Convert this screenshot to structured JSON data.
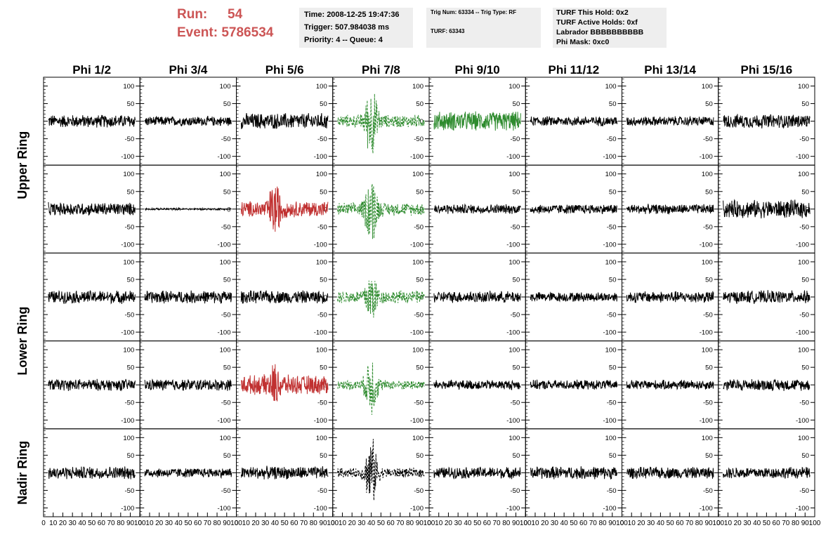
{
  "header": {
    "run_label": "Run:",
    "run_value": "54",
    "event_label": "Event:",
    "event_value": "5786534"
  },
  "info_time": {
    "time": "Time: 2008-12-25 19:47:36",
    "trigger": "Trigger: 507.984038 ms",
    "priority": "Priority: 4 -- Queue: 4"
  },
  "info_trig": {
    "trig": "Trig Num: 63334 -- Trig Type: RF",
    "turf": "TURF: 63343"
  },
  "info_turf": {
    "hold": "TURF This Hold: 0x2",
    "active": "TURF Active Holds: 0xf",
    "labrador": "Labrador BBBBBBBBBB",
    "mask": "Phi Mask: 0xc0"
  },
  "chart_data": {
    "type": "line",
    "grid": false,
    "column_titles": [
      "Phi 1/2",
      "Phi 3/4",
      "Phi 5/6",
      "Phi 7/8",
      "Phi 9/10",
      "Phi 11/12",
      "Phi 13/14",
      "Phi 15/16"
    ],
    "ring_titles": [
      "Upper Ring",
      "Lower Ring",
      "Nadir Ring"
    ],
    "ring_row_spans": [
      2,
      2,
      1
    ],
    "xlim": [
      0,
      100
    ],
    "ylim": [
      -125,
      125
    ],
    "x_tick_labels": [
      "0",
      "10",
      "20",
      "30",
      "40",
      "50",
      "60",
      "70",
      "80",
      "90",
      "100"
    ],
    "y_tick_labels": [
      "-100",
      "-50",
      "0",
      "50",
      "100"
    ],
    "colors": {
      "default": "#000000",
      "red": "#c03030",
      "green": "#2e8b2e"
    },
    "panels": [
      {
        "row": 0,
        "col": 0,
        "color": "#000000",
        "style": "solid",
        "amplitude": 20,
        "burst": 0
      },
      {
        "row": 0,
        "col": 1,
        "color": "#000000",
        "style": "solid",
        "amplitude": 15,
        "burst": 0
      },
      {
        "row": 0,
        "col": 2,
        "color": "#000000",
        "style": "solid",
        "amplitude": 25,
        "burst": 0
      },
      {
        "row": 0,
        "col": 3,
        "color": "#2e8b2e",
        "style": "dashed",
        "amplitude": 20,
        "burst": 100
      },
      {
        "row": 0,
        "col": 4,
        "color": "#2e8b2e",
        "style": "solid",
        "amplitude": 30,
        "burst": 0
      },
      {
        "row": 0,
        "col": 5,
        "color": "#000000",
        "style": "solid",
        "amplitude": 15,
        "burst": 0
      },
      {
        "row": 0,
        "col": 6,
        "color": "#000000",
        "style": "solid",
        "amplitude": 15,
        "burst": 0
      },
      {
        "row": 0,
        "col": 7,
        "color": "#000000",
        "style": "solid",
        "amplitude": 22,
        "burst": 0
      },
      {
        "row": 1,
        "col": 0,
        "color": "#000000",
        "style": "solid",
        "amplitude": 20,
        "burst": 0
      },
      {
        "row": 1,
        "col": 1,
        "color": "#000000",
        "style": "solid",
        "amplitude": 3,
        "burst": 0
      },
      {
        "row": 1,
        "col": 2,
        "color": "#c03030",
        "style": "solid",
        "amplitude": 25,
        "burst": 70
      },
      {
        "row": 1,
        "col": 3,
        "color": "#2e8b2e",
        "style": "dashed",
        "amplitude": 20,
        "burst": 100
      },
      {
        "row": 1,
        "col": 4,
        "color": "#000000",
        "style": "solid",
        "amplitude": 15,
        "burst": 0
      },
      {
        "row": 1,
        "col": 5,
        "color": "#000000",
        "style": "solid",
        "amplitude": 15,
        "burst": 0
      },
      {
        "row": 1,
        "col": 6,
        "color": "#000000",
        "style": "solid",
        "amplitude": 15,
        "burst": 0
      },
      {
        "row": 1,
        "col": 7,
        "color": "#000000",
        "style": "solid",
        "amplitude": 28,
        "burst": 0
      },
      {
        "row": 2,
        "col": 0,
        "color": "#000000",
        "style": "solid",
        "amplitude": 20,
        "burst": 0
      },
      {
        "row": 2,
        "col": 1,
        "color": "#000000",
        "style": "solid",
        "amplitude": 20,
        "burst": 0
      },
      {
        "row": 2,
        "col": 2,
        "color": "#000000",
        "style": "solid",
        "amplitude": 20,
        "burst": 0
      },
      {
        "row": 2,
        "col": 3,
        "color": "#2e8b2e",
        "style": "dashed",
        "amplitude": 20,
        "burst": 70
      },
      {
        "row": 2,
        "col": 4,
        "color": "#000000",
        "style": "solid",
        "amplitude": 18,
        "burst": 0
      },
      {
        "row": 2,
        "col": 5,
        "color": "#000000",
        "style": "solid",
        "amplitude": 15,
        "burst": 0
      },
      {
        "row": 2,
        "col": 6,
        "color": "#000000",
        "style": "solid",
        "amplitude": 18,
        "burst": 0
      },
      {
        "row": 2,
        "col": 7,
        "color": "#000000",
        "style": "solid",
        "amplitude": 20,
        "burst": 0
      },
      {
        "row": 3,
        "col": 0,
        "color": "#000000",
        "style": "solid",
        "amplitude": 18,
        "burst": 0
      },
      {
        "row": 3,
        "col": 1,
        "color": "#000000",
        "style": "solid",
        "amplitude": 18,
        "burst": 0
      },
      {
        "row": 3,
        "col": 2,
        "color": "#c03030",
        "style": "solid",
        "amplitude": 30,
        "burst": 40
      },
      {
        "row": 3,
        "col": 3,
        "color": "#2e8b2e",
        "style": "dashed",
        "amplitude": 15,
        "burst": 90
      },
      {
        "row": 3,
        "col": 4,
        "color": "#000000",
        "style": "solid",
        "amplitude": 15,
        "burst": 0
      },
      {
        "row": 3,
        "col": 5,
        "color": "#000000",
        "style": "solid",
        "amplitude": 15,
        "burst": 0
      },
      {
        "row": 3,
        "col": 6,
        "color": "#000000",
        "style": "solid",
        "amplitude": 15,
        "burst": 0
      },
      {
        "row": 3,
        "col": 7,
        "color": "#000000",
        "style": "solid",
        "amplitude": 18,
        "burst": 0
      },
      {
        "row": 4,
        "col": 0,
        "color": "#000000",
        "style": "solid",
        "amplitude": 20,
        "burst": 0
      },
      {
        "row": 4,
        "col": 1,
        "color": "#000000",
        "style": "solid",
        "amplitude": 15,
        "burst": 0
      },
      {
        "row": 4,
        "col": 2,
        "color": "#000000",
        "style": "solid",
        "amplitude": 20,
        "burst": 0
      },
      {
        "row": 4,
        "col": 3,
        "color": "#000000",
        "style": "dashed",
        "amplitude": 15,
        "burst": 100
      },
      {
        "row": 4,
        "col": 4,
        "color": "#000000",
        "style": "solid",
        "amplitude": 18,
        "burst": 0
      },
      {
        "row": 4,
        "col": 5,
        "color": "#000000",
        "style": "solid",
        "amplitude": 20,
        "burst": 0
      },
      {
        "row": 4,
        "col": 6,
        "color": "#000000",
        "style": "solid",
        "amplitude": 18,
        "burst": 0
      },
      {
        "row": 4,
        "col": 7,
        "color": "#000000",
        "style": "solid",
        "amplitude": 18,
        "burst": 0
      }
    ]
  }
}
